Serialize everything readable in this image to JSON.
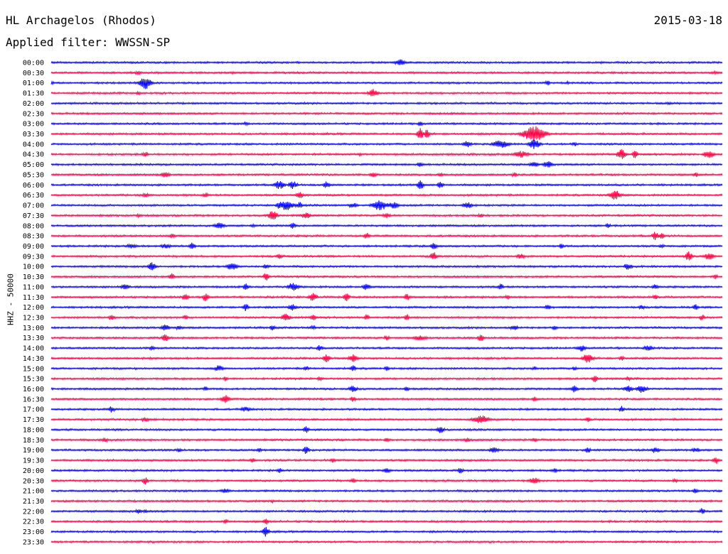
{
  "header": {
    "station": "HL Archagelos (Rhodos)",
    "date": "2015-03-18",
    "filter": "Applied filter: WWSSN-SP"
  },
  "chart_data": {
    "type": "line",
    "ylabel": "HHZ - 50000",
    "colors": [
      "#0000ff",
      "#ff0040"
    ],
    "rows": [
      {
        "label": "00:00",
        "events": [
          [
            0.52,
            4,
            1
          ],
          [
            0.82,
            1.5,
            0.6
          ]
        ]
      },
      {
        "label": "00:30",
        "events": [
          [
            0.13,
            2,
            0.8
          ],
          [
            0.27,
            1.5,
            0.6
          ],
          [
            0.99,
            2,
            1
          ]
        ]
      },
      {
        "label": "01:00",
        "events": [
          [
            0.0,
            3,
            0.5
          ],
          [
            0.14,
            8,
            1
          ],
          [
            0.74,
            3,
            0.5
          ],
          [
            0.77,
            2,
            0.5
          ]
        ]
      },
      {
        "label": "01:30",
        "events": [
          [
            0.13,
            2,
            0.6
          ],
          [
            0.48,
            5,
            1
          ]
        ]
      },
      {
        "label": "02:00",
        "events": [
          [
            0.92,
            1.5,
            0.8
          ]
        ]
      },
      {
        "label": "02:30",
        "events": []
      },
      {
        "label": "03:00",
        "events": [
          [
            0.29,
            2,
            0.8
          ],
          [
            0.55,
            3,
            0.5
          ]
        ]
      },
      {
        "label": "03:30",
        "events": [
          [
            0.55,
            7,
            0.6
          ],
          [
            0.56,
            8,
            0.4
          ],
          [
            0.72,
            10,
            2
          ]
        ]
      },
      {
        "label": "04:00",
        "events": [
          [
            0.62,
            4,
            0.8
          ],
          [
            0.67,
            5,
            1.5
          ],
          [
            0.72,
            6,
            1
          ],
          [
            0.78,
            3,
            0.5
          ]
        ]
      },
      {
        "label": "04:30",
        "events": [
          [
            0.14,
            3,
            0.6
          ],
          [
            0.46,
            2,
            0.5
          ],
          [
            0.7,
            4,
            1.5
          ],
          [
            0.85,
            6,
            0.8
          ],
          [
            0.87,
            5,
            0.5
          ],
          [
            0.98,
            5,
            1
          ]
        ]
      },
      {
        "label": "05:00",
        "events": [
          [
            0.55,
            3,
            0.6
          ],
          [
            0.72,
            3,
            1
          ],
          [
            0.74,
            4,
            1
          ]
        ]
      },
      {
        "label": "05:30",
        "events": [
          [
            0.17,
            3,
            1
          ],
          [
            0.48,
            3,
            0.8
          ],
          [
            0.58,
            3,
            0.5
          ],
          [
            0.69,
            3,
            0.5
          ],
          [
            0.96,
            3,
            0.5
          ]
        ]
      },
      {
        "label": "06:00",
        "events": [
          [
            0.34,
            5,
            1
          ],
          [
            0.36,
            5,
            0.8
          ],
          [
            0.41,
            4,
            0.6
          ],
          [
            0.55,
            6,
            0.6
          ],
          [
            0.58,
            5,
            0.5
          ]
        ]
      },
      {
        "label": "06:30",
        "events": [
          [
            0.14,
            3,
            0.6
          ],
          [
            0.23,
            3,
            0.6
          ],
          [
            0.37,
            5,
            0.6
          ],
          [
            0.84,
            6,
            1
          ]
        ]
      },
      {
        "label": "07:00",
        "events": [
          [
            0.34,
            5,
            0.5
          ],
          [
            0.35,
            6,
            1.5
          ],
          [
            0.37,
            4,
            0.5
          ],
          [
            0.45,
            3,
            1
          ],
          [
            0.49,
            6,
            1.5
          ],
          [
            0.51,
            4,
            1
          ],
          [
            0.62,
            4,
            1
          ]
        ]
      },
      {
        "label": "07:30",
        "events": [
          [
            0.13,
            2,
            0.5
          ],
          [
            0.33,
            6,
            0.8
          ],
          [
            0.38,
            4,
            0.8
          ],
          [
            0.5,
            3,
            0.8
          ],
          [
            0.64,
            3,
            0.5
          ]
        ]
      },
      {
        "label": "08:00",
        "events": [
          [
            0.25,
            4,
            1
          ],
          [
            0.3,
            2,
            0.5
          ],
          [
            0.36,
            4,
            0.5
          ],
          [
            0.83,
            3,
            0.5
          ]
        ]
      },
      {
        "label": "08:30",
        "events": [
          [
            0.18,
            3,
            0.6
          ],
          [
            0.47,
            4,
            0.6
          ],
          [
            0.9,
            5,
            0.6
          ],
          [
            0.91,
            4,
            0.5
          ]
        ]
      },
      {
        "label": "09:00",
        "events": [
          [
            0.12,
            3,
            1
          ],
          [
            0.17,
            3,
            1
          ],
          [
            0.21,
            4,
            0.6
          ],
          [
            0.57,
            4,
            0.6
          ],
          [
            0.76,
            3,
            0.5
          ],
          [
            0.91,
            3,
            0.5
          ]
        ]
      },
      {
        "label": "09:30",
        "events": [
          [
            0.34,
            3,
            0.6
          ],
          [
            0.57,
            5,
            0.6
          ],
          [
            0.7,
            3,
            0.8
          ],
          [
            0.95,
            6,
            0.6
          ],
          [
            0.98,
            4,
            1
          ]
        ]
      },
      {
        "label": "10:00",
        "events": [
          [
            0.15,
            5,
            0.8
          ],
          [
            0.27,
            5,
            1
          ],
          [
            0.32,
            3,
            0.6
          ],
          [
            0.86,
            4,
            0.8
          ]
        ]
      },
      {
        "label": "10:30",
        "events": [
          [
            0.18,
            4,
            0.5
          ],
          [
            0.32,
            5,
            0.5
          ],
          [
            0.99,
            3,
            0.5
          ]
        ]
      },
      {
        "label": "11:00",
        "events": [
          [
            0.11,
            3,
            1
          ],
          [
            0.29,
            4,
            0.5
          ],
          [
            0.36,
            5,
            1
          ],
          [
            0.47,
            4,
            0.8
          ],
          [
            0.67,
            4,
            0.5
          ],
          [
            0.9,
            4,
            0.5
          ]
        ]
      },
      {
        "label": "11:30",
        "events": [
          [
            0.2,
            4,
            0.6
          ],
          [
            0.23,
            5,
            0.6
          ],
          [
            0.39,
            5,
            0.8
          ],
          [
            0.44,
            5,
            0.6
          ],
          [
            0.53,
            4,
            0.6
          ],
          [
            0.68,
            3,
            0.5
          ],
          [
            0.9,
            3,
            0.5
          ]
        ]
      },
      {
        "label": "12:00",
        "events": [
          [
            0.29,
            5,
            0.5
          ],
          [
            0.36,
            4,
            0.8
          ],
          [
            0.74,
            4,
            0.5
          ],
          [
            0.88,
            3,
            0.5
          ],
          [
            0.96,
            4,
            0.5
          ]
        ]
      },
      {
        "label": "12:30",
        "events": [
          [
            0.09,
            4,
            0.5
          ],
          [
            0.2,
            3,
            0.5
          ],
          [
            0.35,
            5,
            0.8
          ],
          [
            0.39,
            4,
            0.5
          ],
          [
            0.47,
            4,
            0.5
          ],
          [
            0.53,
            4,
            0.5
          ],
          [
            0.97,
            4,
            0.5
          ]
        ]
      },
      {
        "label": "13:00",
        "events": [
          [
            0.17,
            4,
            0.8
          ],
          [
            0.19,
            3,
            0.5
          ],
          [
            0.33,
            4,
            0.5
          ],
          [
            0.39,
            3,
            0.5
          ],
          [
            0.69,
            3,
            0.8
          ],
          [
            0.75,
            3,
            0.5
          ]
        ]
      },
      {
        "label": "13:30",
        "events": [
          [
            0.17,
            5,
            0.6
          ],
          [
            0.5,
            3,
            0.6
          ],
          [
            0.55,
            3,
            1.5
          ],
          [
            0.64,
            4,
            0.6
          ]
        ]
      },
      {
        "label": "14:00",
        "events": [
          [
            0.15,
            3,
            0.6
          ],
          [
            0.4,
            4,
            0.5
          ],
          [
            0.79,
            4,
            0.8
          ],
          [
            0.89,
            3,
            1
          ]
        ]
      },
      {
        "label": "14:30",
        "events": [
          [
            0.41,
            5,
            0.6
          ],
          [
            0.45,
            5,
            0.8
          ],
          [
            0.8,
            6,
            1
          ],
          [
            0.85,
            3,
            0.5
          ]
        ]
      },
      {
        "label": "15:00",
        "events": [
          [
            0.25,
            4,
            0.8
          ],
          [
            0.38,
            3,
            0.5
          ],
          [
            0.45,
            4,
            0.5
          ],
          [
            0.5,
            3,
            0.5
          ],
          [
            0.72,
            3,
            0.5
          ],
          [
            0.78,
            3,
            0.5
          ]
        ]
      },
      {
        "label": "15:30",
        "events": [
          [
            0.26,
            3,
            0.5
          ],
          [
            0.4,
            3,
            0.5
          ],
          [
            0.81,
            5,
            0.5
          ],
          [
            0.86,
            3,
            0.5
          ]
        ]
      },
      {
        "label": "16:00",
        "events": [
          [
            0.23,
            3,
            0.5
          ],
          [
            0.45,
            4,
            0.8
          ],
          [
            0.53,
            3,
            0.5
          ],
          [
            0.78,
            5,
            0.6
          ],
          [
            0.86,
            4,
            0.8
          ],
          [
            0.88,
            5,
            1
          ]
        ]
      },
      {
        "label": "16:30",
        "events": [
          [
            0.26,
            5,
            0.8
          ],
          [
            0.45,
            4,
            0.5
          ],
          [
            0.72,
            3,
            0.5
          ]
        ]
      },
      {
        "label": "17:00",
        "events": [
          [
            0.09,
            4,
            0.5
          ],
          [
            0.29,
            3,
            1
          ],
          [
            0.85,
            4,
            0.5
          ]
        ]
      },
      {
        "label": "17:30",
        "events": [
          [
            0.14,
            3,
            0.8
          ],
          [
            0.64,
            5,
            1.5
          ],
          [
            0.8,
            3,
            0.5
          ]
        ]
      },
      {
        "label": "18:00",
        "events": [
          [
            0.38,
            4,
            0.5
          ],
          [
            0.58,
            4,
            0.8
          ]
        ]
      },
      {
        "label": "18:30",
        "events": [
          [
            0.08,
            3,
            0.6
          ],
          [
            0.5,
            3,
            0.5
          ],
          [
            0.62,
            3,
            0.5
          ],
          [
            0.72,
            3,
            0.5
          ]
        ]
      },
      {
        "label": "19:00",
        "events": [
          [
            0.19,
            3,
            0.5
          ],
          [
            0.31,
            3,
            0.5
          ],
          [
            0.38,
            5,
            0.6
          ],
          [
            0.66,
            4,
            0.8
          ],
          [
            0.8,
            4,
            0.5
          ],
          [
            0.9,
            4,
            0.8
          ],
          [
            0.96,
            3,
            0.8
          ]
        ]
      },
      {
        "label": "19:30",
        "events": [
          [
            0.3,
            3,
            0.5
          ],
          [
            0.42,
            3,
            0.5
          ],
          [
            0.99,
            5,
            0.5
          ]
        ]
      },
      {
        "label": "20:00",
        "events": [
          [
            0.34,
            3,
            0.5
          ],
          [
            0.5,
            3,
            0.8
          ],
          [
            0.61,
            4,
            0.5
          ],
          [
            0.75,
            3,
            0.5
          ]
        ]
      },
      {
        "label": "20:30",
        "events": [
          [
            0.14,
            5,
            0.5
          ],
          [
            0.45,
            3,
            0.5
          ],
          [
            0.72,
            4,
            1
          ],
          [
            0.93,
            3,
            0.5
          ]
        ]
      },
      {
        "label": "21:00",
        "events": [
          [
            0.26,
            3,
            1
          ],
          [
            0.96,
            3,
            0.5
          ]
        ]
      },
      {
        "label": "21:30",
        "events": [
          [
            0.33,
            2,
            0.5
          ]
        ]
      },
      {
        "label": "22:00",
        "events": [
          [
            0.13,
            3,
            0.6
          ],
          [
            0.14,
            2,
            0.5
          ],
          [
            0.97,
            4,
            0.5
          ]
        ]
      },
      {
        "label": "22:30",
        "events": [
          [
            0.26,
            3,
            0.5
          ],
          [
            0.32,
            4,
            0.5
          ]
        ]
      },
      {
        "label": "23:00",
        "events": [
          [
            0.32,
            6,
            0.6
          ]
        ]
      },
      {
        "label": "23:30",
        "events": []
      }
    ]
  }
}
